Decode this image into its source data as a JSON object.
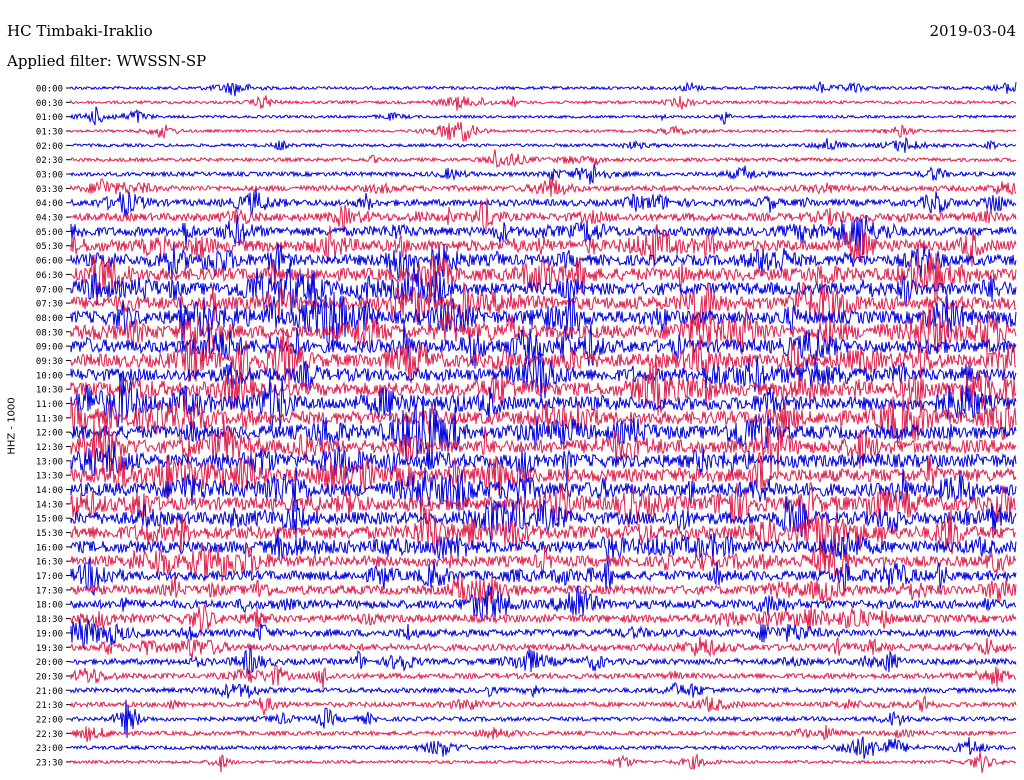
{
  "header": {
    "station": "HC Timbaki-Iraklio",
    "date": "2019-03-04",
    "filter": "Applied filter: WWSSN-SP"
  },
  "chart_data": {
    "type": "line",
    "ylabel": "HHZ - 1000",
    "colors": [
      "#0000e0",
      "#e0204c"
    ],
    "rows": [
      {
        "time": "00:00",
        "activity": 0.15
      },
      {
        "time": "00:30",
        "activity": 0.15
      },
      {
        "time": "01:00",
        "activity": 0.12
      },
      {
        "time": "01:30",
        "activity": 0.12
      },
      {
        "time": "02:00",
        "activity": 0.15
      },
      {
        "time": "02:30",
        "activity": 0.2
      },
      {
        "time": "03:00",
        "activity": 0.25
      },
      {
        "time": "03:30",
        "activity": 0.35
      },
      {
        "time": "04:00",
        "activity": 0.45
      },
      {
        "time": "04:30",
        "activity": 0.55
      },
      {
        "time": "05:00",
        "activity": 0.65
      },
      {
        "time": "05:30",
        "activity": 0.85
      },
      {
        "time": "06:00",
        "activity": 0.8
      },
      {
        "time": "06:30",
        "activity": 0.95
      },
      {
        "time": "07:00",
        "activity": 0.95
      },
      {
        "time": "07:30",
        "activity": 1.0
      },
      {
        "time": "08:00",
        "activity": 1.0
      },
      {
        "time": "08:30",
        "activity": 1.0
      },
      {
        "time": "09:00",
        "activity": 1.0
      },
      {
        "time": "09:30",
        "activity": 1.0
      },
      {
        "time": "10:00",
        "activity": 0.95
      },
      {
        "time": "10:30",
        "activity": 1.0
      },
      {
        "time": "11:00",
        "activity": 1.0
      },
      {
        "time": "11:30",
        "activity": 1.0
      },
      {
        "time": "12:00",
        "activity": 1.0
      },
      {
        "time": "12:30",
        "activity": 1.0
      },
      {
        "time": "13:00",
        "activity": 1.0
      },
      {
        "time": "13:30",
        "activity": 1.0
      },
      {
        "time": "14:00",
        "activity": 1.0
      },
      {
        "time": "14:30",
        "activity": 1.0
      },
      {
        "time": "15:00",
        "activity": 0.95
      },
      {
        "time": "15:30",
        "activity": 1.0
      },
      {
        "time": "16:00",
        "activity": 0.9
      },
      {
        "time": "16:30",
        "activity": 0.8
      },
      {
        "time": "17:00",
        "activity": 0.7
      },
      {
        "time": "17:30",
        "activity": 0.65
      },
      {
        "time": "18:00",
        "activity": 0.6
      },
      {
        "time": "18:30",
        "activity": 0.55
      },
      {
        "time": "19:00",
        "activity": 0.5
      },
      {
        "time": "19:30",
        "activity": 0.45
      },
      {
        "time": "20:00",
        "activity": 0.4
      },
      {
        "time": "20:30",
        "activity": 0.35
      },
      {
        "time": "21:00",
        "activity": 0.3
      },
      {
        "time": "21:30",
        "activity": 0.3
      },
      {
        "time": "22:00",
        "activity": 0.25
      },
      {
        "time": "22:30",
        "activity": 0.25
      },
      {
        "time": "23:00",
        "activity": 0.2
      },
      {
        "time": "23:30",
        "activity": 0.15
      }
    ]
  }
}
